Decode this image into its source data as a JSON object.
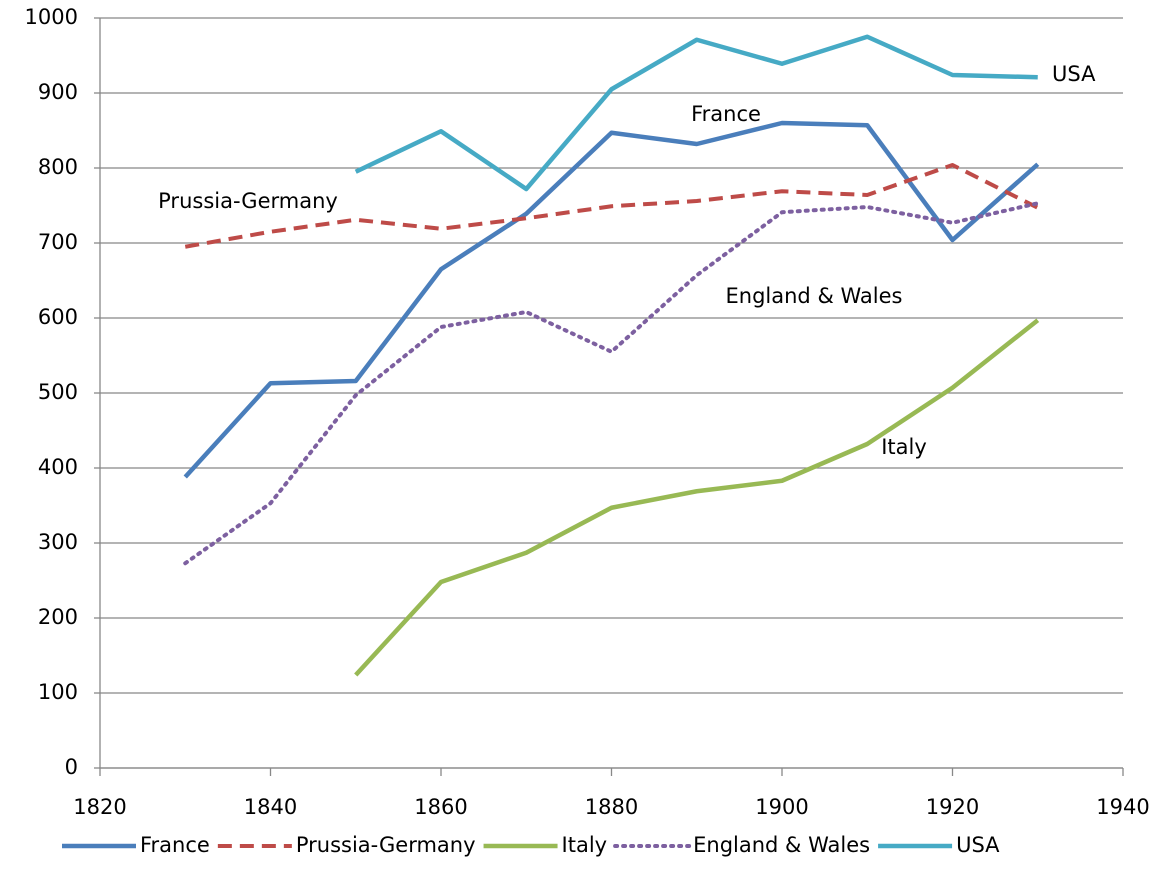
{
  "chart_data": {
    "type": "line",
    "x": [
      1830,
      1840,
      1850,
      1860,
      1870,
      1880,
      1890,
      1900,
      1910,
      1920,
      1930
    ],
    "series": [
      {
        "name": "France",
        "color": "#4a7ebb",
        "style": "solid",
        "values": [
          388,
          513,
          516,
          665,
          739,
          847,
          832,
          860,
          857,
          704,
          805
        ]
      },
      {
        "name": "Prussia-Germany",
        "color": "#be4b48",
        "style": "dashed",
        "values": [
          695,
          715,
          731,
          719,
          733,
          749,
          756,
          769,
          764,
          804,
          747
        ]
      },
      {
        "name": "Italy",
        "color": "#98b954",
        "style": "solid",
        "values": [
          null,
          null,
          124,
          248,
          287,
          347,
          369,
          383,
          432,
          507,
          597
        ]
      },
      {
        "name": "England & Wales",
        "color": "#7d60a0",
        "style": "dotted",
        "values": [
          273,
          353,
          497,
          588,
          608,
          555,
          657,
          741,
          748,
          727,
          753
        ]
      },
      {
        "name": "USA",
        "color": "#46aac5",
        "style": "solid",
        "values": [
          null,
          null,
          795,
          849,
          772,
          905,
          971,
          939,
          975,
          924,
          921
        ]
      }
    ],
    "annotations": [
      "USA",
      "France",
      "Prussia-Germany",
      "England & Wales",
      "Italy"
    ],
    "xlim": [
      1820,
      1940
    ],
    "xticks": [
      1820,
      1840,
      1860,
      1880,
      1900,
      1920,
      1940
    ],
    "ylim": [
      0,
      1000
    ],
    "yticks": [
      0,
      100,
      200,
      300,
      400,
      500,
      600,
      700,
      800,
      900,
      1000
    ],
    "grid": true,
    "legend": "bottom"
  }
}
